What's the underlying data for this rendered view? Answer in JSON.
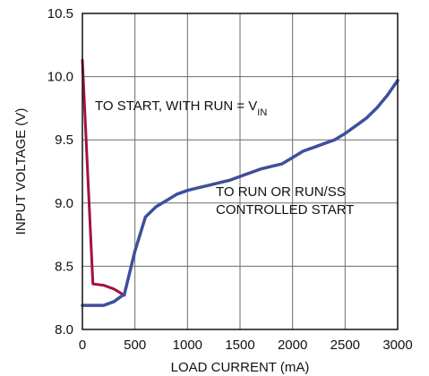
{
  "chart_data": {
    "type": "line",
    "xlabel": "LOAD CURRENT (mA)",
    "ylabel": "INPUT VOLTAGE (V)",
    "xlim": [
      0,
      3000
    ],
    "ylim": [
      8.0,
      10.5
    ],
    "x_ticks": [
      "0",
      "500",
      "1000",
      "1500",
      "2000",
      "2500",
      "3000"
    ],
    "y_ticks": [
      "8.0",
      "8.5",
      "9.0",
      "9.5",
      "10.0",
      "10.5"
    ],
    "grid": true,
    "series": [
      {
        "color": "#a3123f",
        "x": [
          0,
          100,
          200,
          300,
          400
        ],
        "y": [
          10.13,
          8.36,
          8.35,
          8.32,
          8.27
        ]
      },
      {
        "color": "#3f4f9b",
        "x": [
          0,
          200,
          300,
          400,
          500,
          600,
          700,
          800,
          900,
          1000,
          1100,
          1200,
          1300,
          1400,
          1500,
          1600,
          1700,
          1800,
          1900,
          2000,
          2100,
          2200,
          2300,
          2400,
          2500,
          2600,
          2700,
          2800,
          2900,
          3000
        ],
        "y": [
          8.19,
          8.19,
          8.22,
          8.28,
          8.62,
          8.89,
          8.97,
          9.02,
          9.07,
          9.1,
          9.12,
          9.14,
          9.16,
          9.18,
          9.21,
          9.24,
          9.27,
          9.29,
          9.31,
          9.36,
          9.41,
          9.44,
          9.47,
          9.5,
          9.55,
          9.61,
          9.67,
          9.75,
          9.85,
          9.97
        ]
      }
    ],
    "annotations": [
      {
        "name": "annotation-start-with-run",
        "lines": [
          {
            "segments": [
              {
                "text": "TO START, WITH RUN = V",
                "subscript": false
              },
              {
                "text": "IN",
                "subscript": true
              }
            ]
          }
        ]
      },
      {
        "name": "annotation-run-controlled",
        "lines": [
          {
            "segments": [
              {
                "text": "TO RUN OR RUN/SS",
                "subscript": false
              }
            ]
          },
          {
            "segments": [
              {
                "text": "CONTROLLED START",
                "subscript": false
              }
            ]
          }
        ]
      }
    ]
  }
}
